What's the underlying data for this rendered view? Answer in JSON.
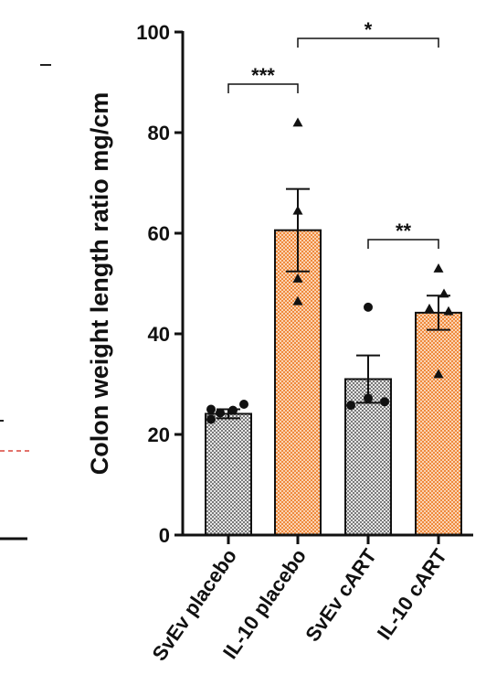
{
  "chart_data": {
    "type": "bar",
    "title": "",
    "xlabel": "",
    "ylabel": "Colon weight length ratio mg/cm",
    "ylim": [
      0,
      100
    ],
    "yticks": [
      0,
      20,
      40,
      60,
      80,
      100
    ],
    "categories": [
      "SvEv placebo",
      "IL-10 placebo",
      "SvEv cART",
      "IL-10 cART"
    ],
    "values": [
      24.1,
      60.6,
      31.0,
      44.2
    ],
    "errors": [
      0.9,
      8.2,
      4.7,
      3.4
    ],
    "point_markers": [
      "circle",
      "triangle",
      "circle",
      "triangle"
    ],
    "points": [
      [
        25.0,
        24.3,
        23.0,
        26.0,
        24.8
      ],
      [
        82.0,
        64.5,
        51.0,
        46.5
      ],
      [
        45.3,
        25.8,
        27.2,
        26.5
      ],
      [
        53.0,
        45.0,
        48.0,
        44.5,
        32.0
      ]
    ],
    "colors": {
      "svev": "#bdbdbd",
      "il10": "#f5a46a",
      "outline": "#111111"
    },
    "significance": [
      {
        "label": "***",
        "from": 0,
        "to": 1
      },
      {
        "label": "*",
        "from": 1,
        "to": 3
      },
      {
        "label": "**",
        "from": 2,
        "to": 3
      }
    ],
    "grid": false,
    "legend": "none"
  }
}
